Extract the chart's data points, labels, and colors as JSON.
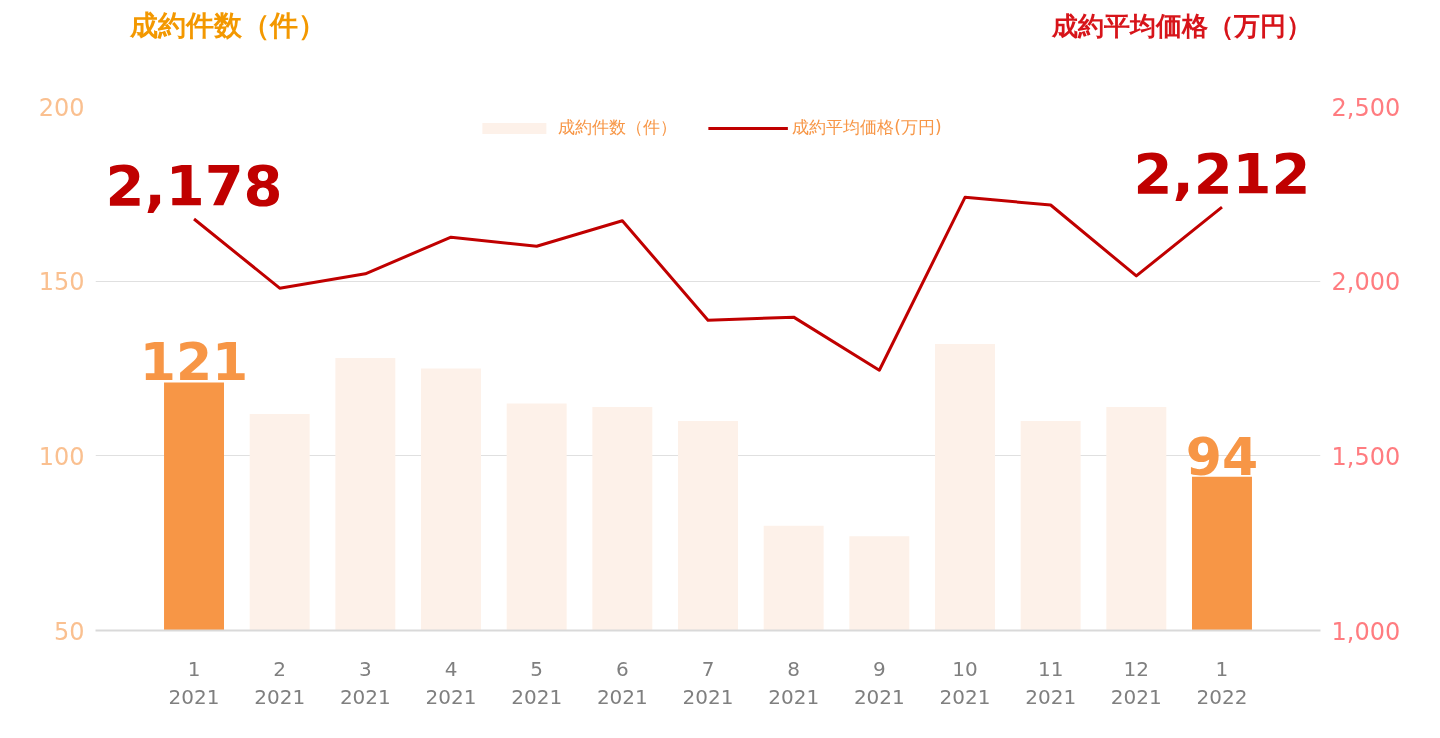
{
  "chart_data": {
    "type": "bar",
    "ylabel": "成約件数（件）",
    "y2label": "成約平均価格（万円）",
    "categories": [
      "1\n2021",
      "2\n2021",
      "3\n2021",
      "4\n2021",
      "5\n2021",
      "6\n2021",
      "7\n2021",
      "8\n2021",
      "9\n2021",
      "10\n2021",
      "11\n2021",
      "12\n2021",
      "1\n2022"
    ],
    "series": [
      {
        "name": "成約件数（件）",
        "color": "#fdf1e9",
        "colors": [
          "#f79646",
          "#fdf1e9",
          "#fdf1e9",
          "#fdf1e9",
          "#fdf1e9",
          "#fdf1e9",
          "#fdf1e9",
          "#fdf1e9",
          "#fdf1e9",
          "#fdf1e9",
          "#fdf1e9",
          "#fdf1e9",
          "#f79646"
        ],
        "values": [
          121,
          112,
          128,
          125,
          115,
          114,
          110,
          80,
          77,
          132,
          110,
          114,
          94
        ],
        "value_labels": [
          "121",
          null,
          null,
          null,
          null,
          null,
          null,
          null,
          null,
          null,
          null,
          null,
          "94"
        ]
      },
      {
        "name": "成約平均価格(万円)",
        "type": "line",
        "axis": "y2",
        "color": "#c00000",
        "values": [
          2178,
          1980,
          2021,
          2126,
          2100,
          2173,
          1888,
          1897,
          1745,
          2240,
          2218,
          2015,
          2212
        ],
        "value_labels": [
          "2,178",
          null,
          null,
          null,
          null,
          null,
          null,
          null,
          null,
          null,
          null,
          null,
          "2,212"
        ]
      }
    ],
    "ylim": [
      50,
      200
    ],
    "yticks": [
      50,
      100,
      150,
      200
    ],
    "y2lim": [
      1000,
      2500
    ],
    "y2ticks": [
      {
        "value": 1000,
        "label": "1,000"
      },
      {
        "value": 1500,
        "label": "1,500"
      },
      {
        "value": 2000,
        "label": "2,000"
      },
      {
        "value": 2500,
        "label": "2,500"
      }
    ],
    "grid": "y",
    "legend": "top",
    "line_style": "solid",
    "marker": "none"
  }
}
